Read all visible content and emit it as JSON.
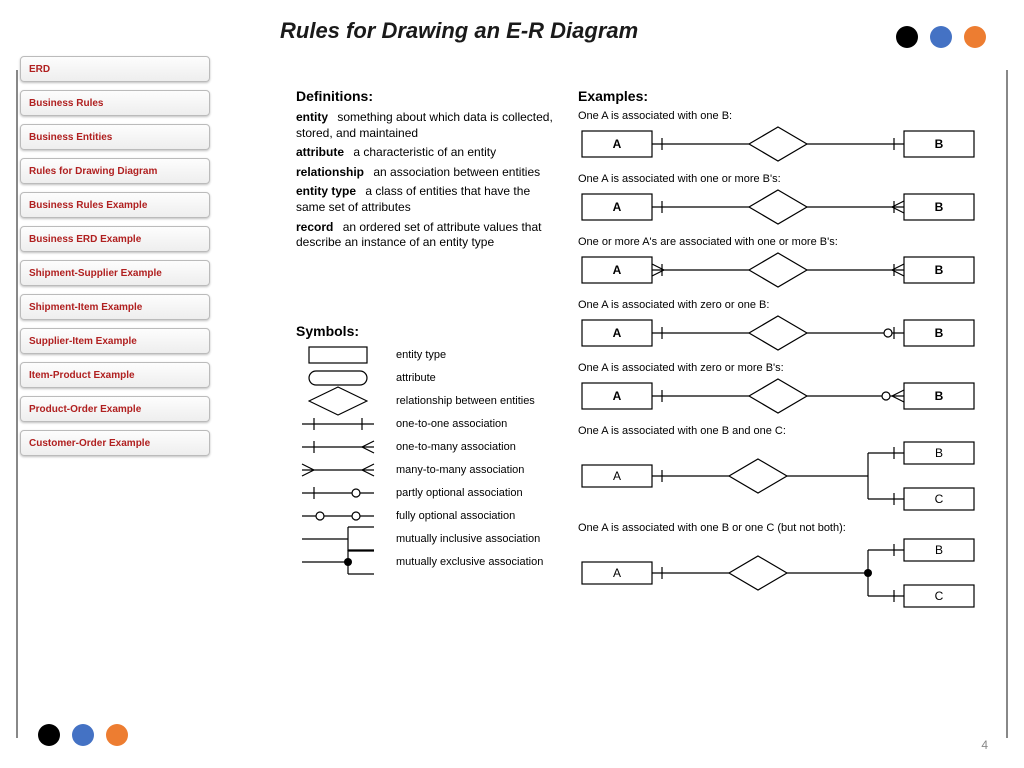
{
  "title": "Rules for Drawing an E-R Diagram",
  "page_number": "4",
  "decor": {
    "dot_colors": [
      "#000000",
      "#4472c4",
      "#ed7d31"
    ],
    "dot_size": 22
  },
  "sidebar": {
    "active_index": 0,
    "items": [
      "ERD",
      "Business Rules",
      "Business Entities",
      "Rules for Drawing Diagram",
      "Business Rules Example",
      "Business ERD Example",
      "Shipment-Supplier Example",
      "Shipment-Item Example",
      "Supplier-Item Example",
      "Item-Product Example",
      "Product-Order Example",
      "Customer-Order Example"
    ]
  },
  "definitions": {
    "heading": "Definitions:",
    "items": [
      {
        "term": "entity",
        "text": "something about which data is collected, stored, and maintained"
      },
      {
        "term": "attribute",
        "text": "a characteristic of an entity"
      },
      {
        "term": "relationship",
        "text": "an association between entities"
      },
      {
        "term": "entity type",
        "text": "a class of entities that have the same set of attributes"
      },
      {
        "term": "record",
        "text": "an ordered set of attribute values that describe an instance of an entity type"
      }
    ]
  },
  "symbols": {
    "heading": "Symbols:",
    "items": [
      {
        "shape": "rect",
        "label": "entity type"
      },
      {
        "shape": "rounded",
        "label": "attribute"
      },
      {
        "shape": "diamond",
        "label": "relationship between entities"
      },
      {
        "shape": "one-one",
        "label": "one-to-one association"
      },
      {
        "shape": "one-many",
        "label": "one-to-many association"
      },
      {
        "shape": "many-many",
        "label": "many-to-many association"
      },
      {
        "shape": "partly-opt",
        "label": "partly optional association"
      },
      {
        "shape": "fully-opt",
        "label": "fully optional association"
      },
      {
        "shape": "mut-incl",
        "label": "mutually inclusive association"
      },
      {
        "shape": "mut-excl",
        "label": "mutually exclusive association"
      }
    ]
  },
  "examples": {
    "heading": "Examples:",
    "stroke": "#000000",
    "stroke_width": 1.2,
    "entity_w": 70,
    "entity_h": 26,
    "diamond_w": 58,
    "diamond_h": 34,
    "font_size": 12,
    "items": [
      {
        "caption": "One A is associated with one B:",
        "left": "A",
        "right": "B",
        "left_end": "bar",
        "right_end": "bar"
      },
      {
        "caption": "One A is associated with one or more B's:",
        "left": "A",
        "right": "B",
        "left_end": "bar",
        "right_end": "crow-bar"
      },
      {
        "caption": "One or more A's are associated with one or more B's:",
        "left": "A",
        "right": "B",
        "left_end": "crow-bar",
        "right_end": "crow-bar"
      },
      {
        "caption": "One A is associated with zero or one B:",
        "left": "A",
        "right": "B",
        "left_end": "bar",
        "right_end": "circle-bar"
      },
      {
        "caption": "One A is associated with zero or more B's:",
        "left": "A",
        "right": "B",
        "left_end": "bar",
        "right_end": "circle-crow"
      }
    ],
    "multi_items": [
      {
        "caption": "One A is associated with one B and one C:",
        "left": "A",
        "b": "B",
        "c": "C",
        "constraint": "inclusive"
      },
      {
        "caption": "One A is associated with one B or one C (but not both):",
        "left": "A",
        "b": "B",
        "c": "C",
        "constraint": "exclusive"
      }
    ]
  }
}
